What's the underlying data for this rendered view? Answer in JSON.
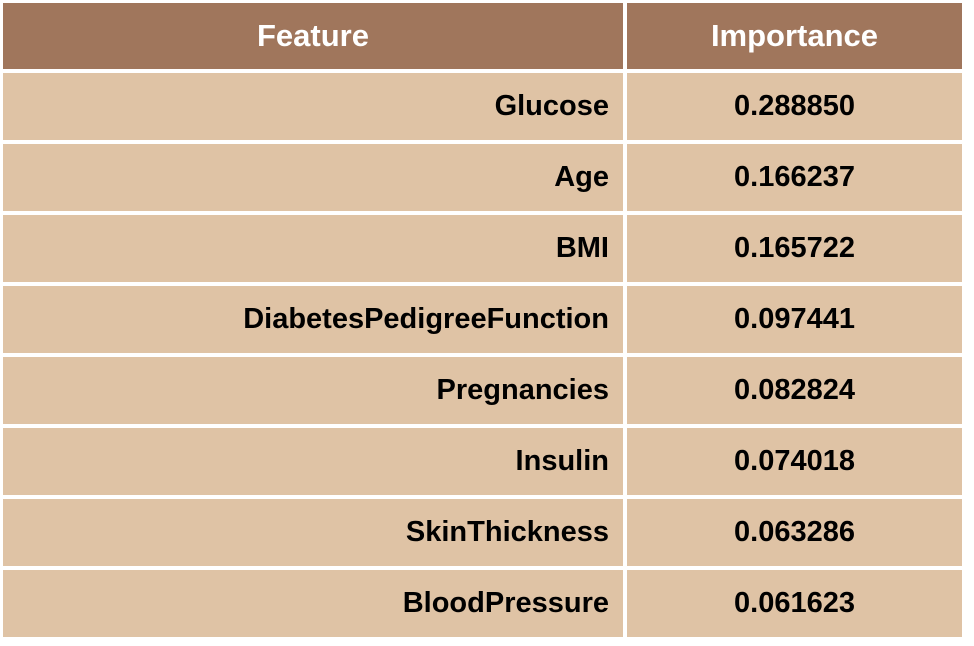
{
  "table": {
    "headers": {
      "feature": "Feature",
      "importance": "Importance"
    },
    "rows": [
      {
        "feature": "Glucose",
        "importance": "0.288850"
      },
      {
        "feature": "Age",
        "importance": "0.166237"
      },
      {
        "feature": "BMI",
        "importance": "0.165722"
      },
      {
        "feature": "DiabetesPedigreeFunction",
        "importance": "0.097441"
      },
      {
        "feature": "Pregnancies",
        "importance": "0.082824"
      },
      {
        "feature": "Insulin",
        "importance": "0.074018"
      },
      {
        "feature": "SkinThickness",
        "importance": "0.063286"
      },
      {
        "feature": "BloodPressure",
        "importance": "0.061623"
      }
    ]
  },
  "colors": {
    "header_bg": "#a0765c",
    "header_text": "#ffffff",
    "cell_bg": "#dfc3a5",
    "cell_text": "#000000"
  }
}
